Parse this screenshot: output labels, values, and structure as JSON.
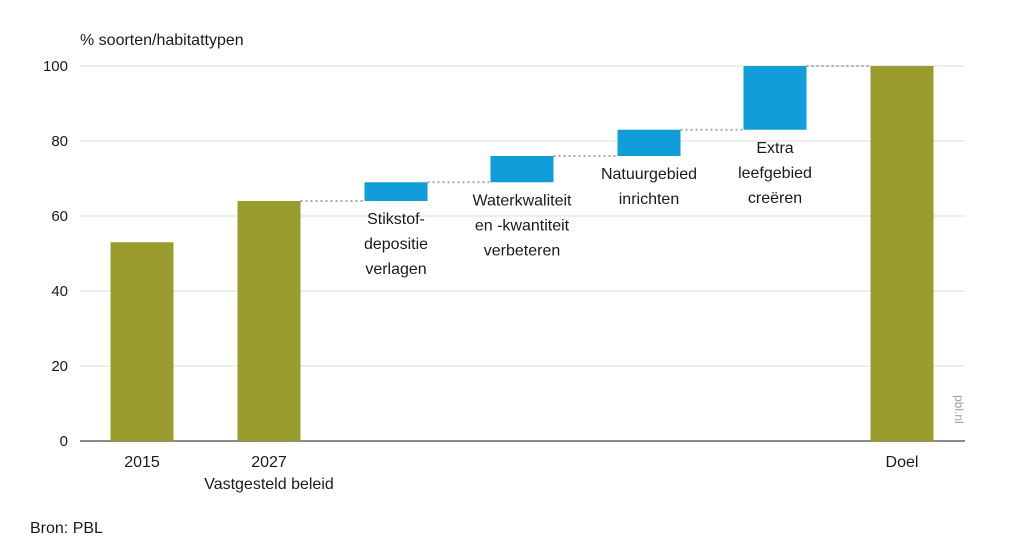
{
  "chart_data": {
    "type": "bar",
    "subtype": "waterfall",
    "ylabel": "% soorten/habitattypen",
    "ylim": [
      0,
      100
    ],
    "yticks": [
      0,
      20,
      40,
      60,
      80,
      100
    ],
    "grid": true,
    "categories": [
      [
        "2015"
      ],
      [
        "2027",
        "Vastgesteld beleid"
      ],
      [
        "Stikstof-",
        "depositie",
        "verlagen"
      ],
      [
        "Waterkwaliteit",
        "en -kwantiteit",
        "verbeteren"
      ],
      [
        "Natuurgebied",
        "inrichten"
      ],
      [
        "Extra",
        "leefgebied",
        "creëren"
      ],
      [
        "Doel"
      ]
    ],
    "bars": [
      {
        "kind": "total",
        "start": 0,
        "end": 53
      },
      {
        "kind": "total",
        "start": 0,
        "end": 64
      },
      {
        "kind": "step",
        "start": 64,
        "end": 69
      },
      {
        "kind": "step",
        "start": 69,
        "end": 76
      },
      {
        "kind": "step",
        "start": 76,
        "end": 83
      },
      {
        "kind": "step",
        "start": 83,
        "end": 100
      },
      {
        "kind": "total",
        "start": 0,
        "end": 100
      }
    ],
    "colors": {
      "total": "#9a9c2d",
      "step": "#119dd8",
      "grid": "#dcdcdc",
      "connector": "#a8a8a8"
    }
  },
  "source": "Bron: PBL",
  "watermark": "pbl.nl"
}
